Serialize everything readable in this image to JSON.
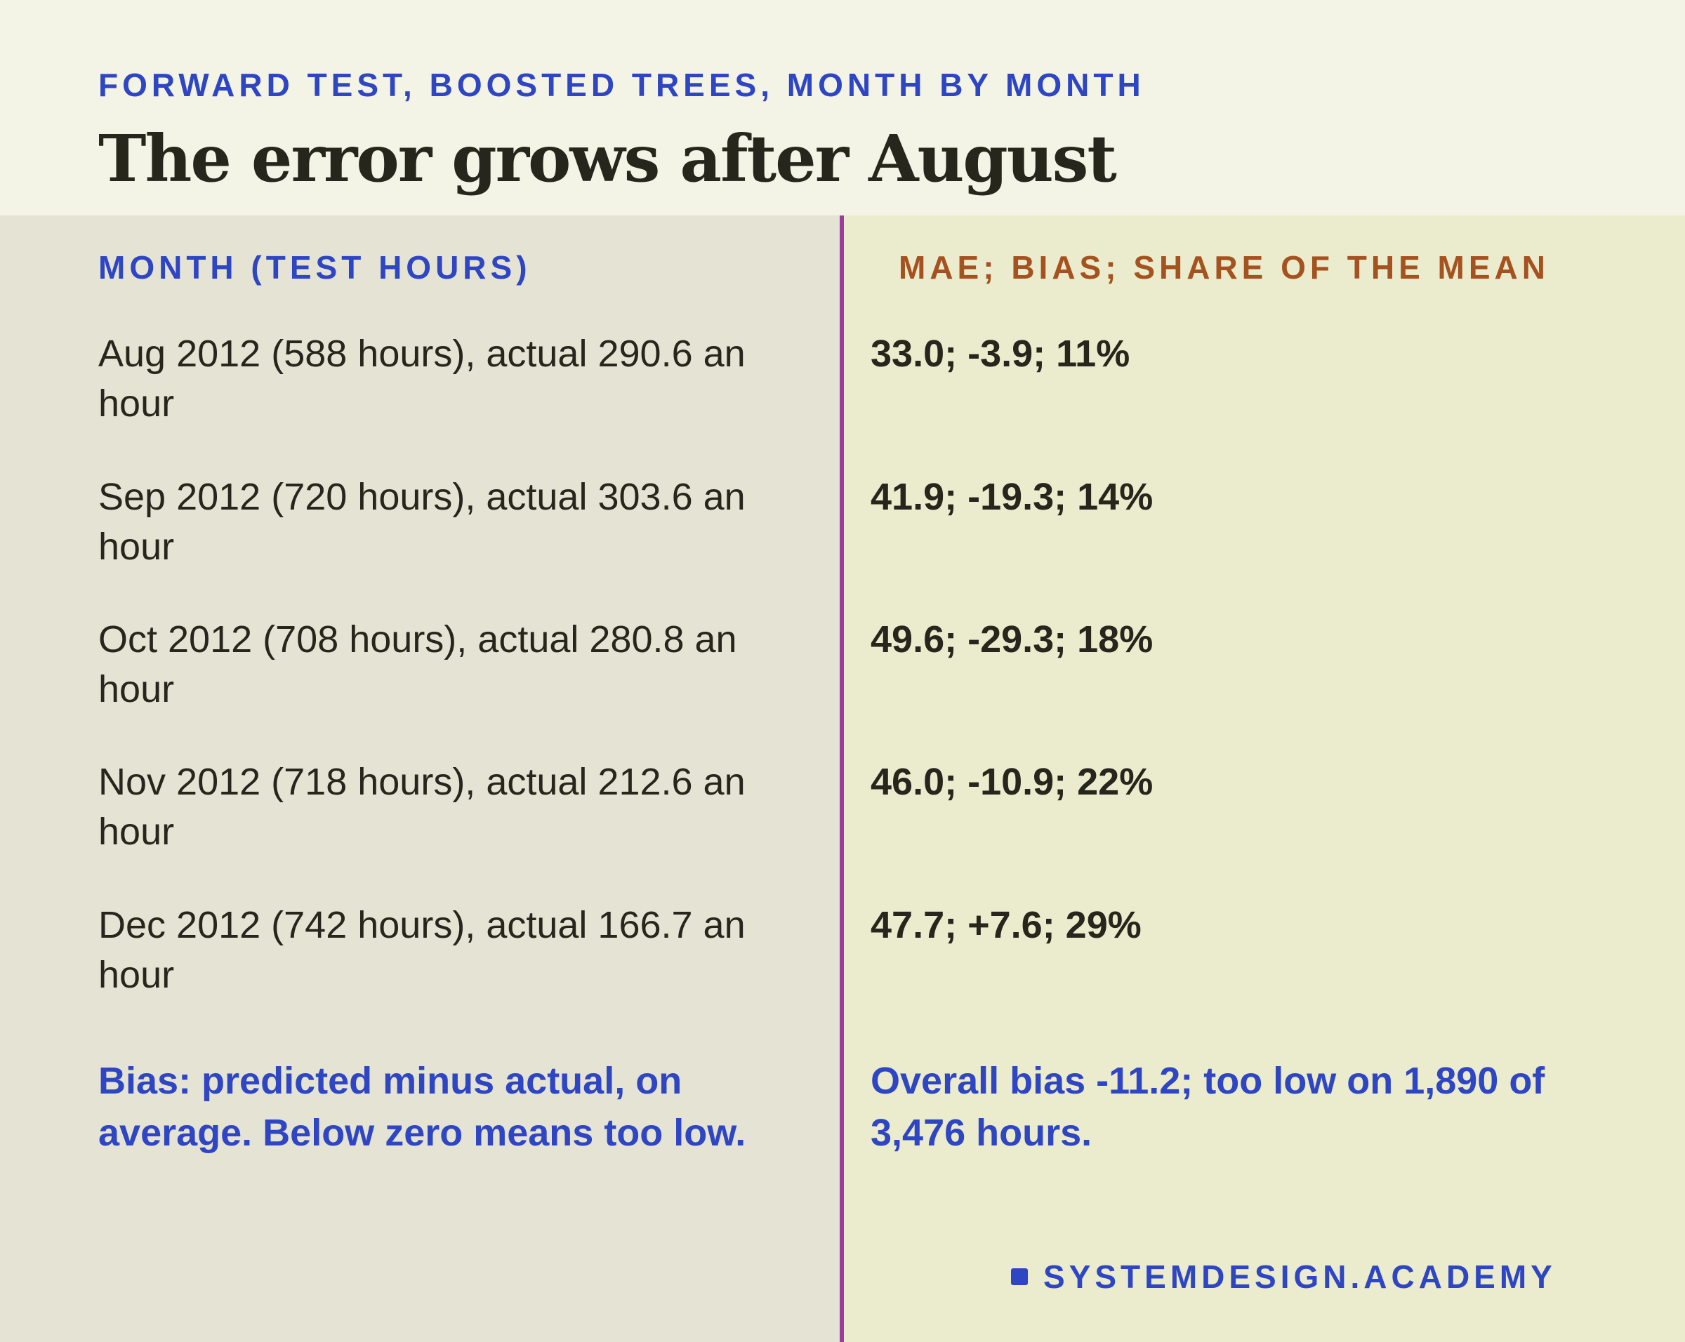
{
  "header": {
    "eyebrow": "FORWARD TEST, BOOSTED TREES, MONTH BY MONTH",
    "title": "The error grows after August"
  },
  "columns": {
    "left_heading": "MONTH (TEST HOURS)",
    "right_heading": "MAE; BIAS; SHARE OF THE MEAN"
  },
  "rows": [
    {
      "month": "Aug 2012 (588 hours), actual 290.6 an hour",
      "value": "33.0; -3.9; 11%"
    },
    {
      "month": "Sep 2012 (720 hours), actual 303.6 an hour",
      "value": "41.9; -19.3; 14%"
    },
    {
      "month": "Oct 2012 (708 hours), actual 280.8 an hour",
      "value": "49.6; -29.3; 18%"
    },
    {
      "month": "Nov 2012 (718 hours), actual 212.6 an hour",
      "value": "46.0; -10.9; 22%"
    },
    {
      "month": "Dec 2012 (742 hours), actual 166.7 an hour",
      "value": "47.7; +7.6; 29%"
    }
  ],
  "notes": {
    "left": "Bias: predicted minus actual, on average. Below zero means too low.",
    "right": "Overall bias -11.2; too low on 1,890 of 3,476 hours."
  },
  "brand": {
    "name": "SYSTEMDESIGN.ACADEMY"
  },
  "colors": {
    "accent_blue": "#2e45c4",
    "accent_orange": "#a4521f",
    "divider_purple": "#9c3d9e",
    "text_dark": "#26261c",
    "header_bg": "#f3f3e6",
    "left_bg": "#e4e3d4",
    "right_bg": "#ebebcd"
  }
}
